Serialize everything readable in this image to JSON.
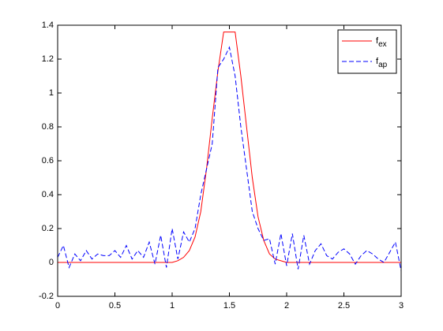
{
  "chart_data": {
    "type": "line",
    "x": [
      0,
      0.05,
      0.1,
      0.15,
      0.2,
      0.25,
      0.3,
      0.35,
      0.4,
      0.45,
      0.5,
      0.55,
      0.6,
      0.65,
      0.7,
      0.75,
      0.8,
      0.85,
      0.9,
      0.95,
      1,
      1.05,
      1.1,
      1.15,
      1.2,
      1.25,
      1.3,
      1.35,
      1.4,
      1.45,
      1.5,
      1.55,
      1.6,
      1.65,
      1.7,
      1.75,
      1.8,
      1.85,
      1.9,
      1.95,
      2,
      2.05,
      2.1,
      2.15,
      2.2,
      2.25,
      2.3,
      2.35,
      2.4,
      2.45,
      2.5,
      2.55,
      2.6,
      2.65,
      2.7,
      2.75,
      2.8,
      2.85,
      2.9,
      2.95,
      3
    ],
    "series": [
      {
        "name": "fex",
        "color": "#ff0000",
        "dash": false,
        "values": [
          0,
          0,
          0,
          0,
          0,
          0,
          0,
          0,
          0,
          0,
          0,
          0,
          0,
          0,
          0,
          0,
          0,
          0,
          0,
          0,
          0,
          0.01,
          0.03,
          0.07,
          0.15,
          0.3,
          0.55,
          0.85,
          1.13,
          1.36,
          1.36,
          1.36,
          1.1,
          0.8,
          0.5,
          0.27,
          0.13,
          0.05,
          0.02,
          0.01,
          0,
          0,
          0,
          0,
          0,
          0,
          0,
          0,
          0,
          0,
          0,
          0,
          0,
          0,
          0,
          0,
          0,
          0,
          0,
          0,
          0
        ]
      },
      {
        "name": "fap",
        "color": "#0000ff",
        "dash": true,
        "values": [
          0.03,
          0.1,
          -0.03,
          0.05,
          0.01,
          0.07,
          0.02,
          0.05,
          0.04,
          0.04,
          0.07,
          0.03,
          0.1,
          0.02,
          0.07,
          0.03,
          0.12,
          -0.01,
          0.16,
          -0.03,
          0.2,
          0.02,
          0.18,
          0.12,
          0.2,
          0.4,
          0.55,
          0.7,
          1.15,
          1.2,
          1.27,
          1.1,
          0.8,
          0.55,
          0.3,
          0.2,
          0.13,
          0.14,
          -0.01,
          0.17,
          -0.02,
          0.17,
          -0.04,
          0.16,
          -0.01,
          0.07,
          0.11,
          0.04,
          0.02,
          0.06,
          0.08,
          0.05,
          -0.01,
          0.04,
          0.07,
          0.05,
          0.02,
          0,
          0.06,
          0.12,
          -0.05
        ]
      }
    ],
    "xlim": [
      0,
      3
    ],
    "xticks": [
      0,
      0.5,
      1,
      1.5,
      2,
      2.5,
      3
    ],
    "ylim": [
      -0.2,
      1.4
    ],
    "yticks": [
      -0.2,
      0,
      0.2,
      0.4,
      0.6,
      0.8,
      1,
      1.2,
      1.4
    ],
    "grid": false,
    "legend": "top-right"
  }
}
